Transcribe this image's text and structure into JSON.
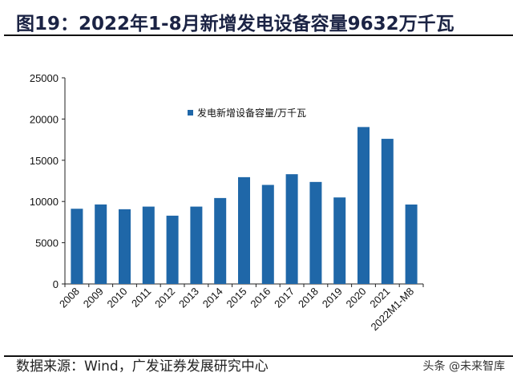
{
  "title": "图19：2022年1-8月新增发电设备容量9632万千瓦",
  "source": "数据来源：Wind，广发证券发展研究中心",
  "watermark": "头条 @未来智库",
  "colors": {
    "bar": "#1f67a8",
    "title": "#1b2344"
  },
  "chart_data": {
    "type": "bar",
    "title": "",
    "xlabel": "",
    "ylabel": "",
    "ylim": [
      0,
      25000
    ],
    "yticks": [
      0,
      5000,
      10000,
      15000,
      20000,
      25000
    ],
    "grid": false,
    "legend_position": "top-center",
    "categories": [
      "2008",
      "2009",
      "2010",
      "2011",
      "2012",
      "2013",
      "2014",
      "2015",
      "2016",
      "2017",
      "2018",
      "2019",
      "2020",
      "2021",
      "2022M1-M8"
    ],
    "series": [
      {
        "name": "发电新增设备容量/万千瓦",
        "values": [
          9120,
          9640,
          9060,
          9380,
          8280,
          9380,
          10420,
          12950,
          12010,
          13310,
          12370,
          10490,
          19030,
          17600,
          9632
        ]
      }
    ]
  }
}
